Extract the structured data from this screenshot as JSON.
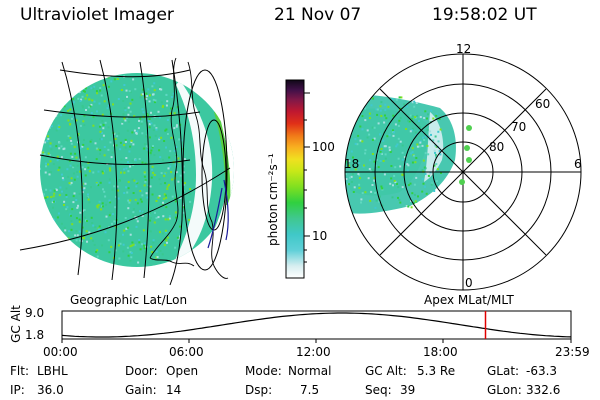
{
  "header": {
    "instrument": "Ultraviolet Imager",
    "date": "21 Nov 07",
    "time": "19:58:02 UT"
  },
  "colorbar": {
    "unit_label": "photon cm⁻²s⁻¹",
    "ticks": [
      "100",
      "10"
    ],
    "colors": [
      "#ffffff",
      "#d8eef0",
      "#80d8d8",
      "#40c8d0",
      "#40c890",
      "#30d040",
      "#70e020",
      "#b0e810",
      "#e0e820",
      "#f8d020",
      "#f89018",
      "#e83018",
      "#c81830",
      "#901848",
      "#501858",
      "#200830"
    ]
  },
  "left_panel": {
    "caption": "Geographic Lat/Lon"
  },
  "right_panel": {
    "caption": "Apex MLat/MLT",
    "mlt_labels": [
      "12",
      "18",
      "6",
      "0"
    ],
    "lat_labels": [
      "60",
      "70",
      "80"
    ]
  },
  "timeline": {
    "axis_label": "GC Alt",
    "y_ticks": [
      "9.0",
      "1.8"
    ],
    "x_ticks": [
      "00:00",
      "06:00",
      "12:00",
      "18:00",
      "23:59"
    ],
    "current_marker_hour": 19.97
  },
  "status": {
    "flt_label": "Flt:",
    "flt_value": "LBHL",
    "ip_label": "IP:",
    "ip_value": "36.0",
    "door_label": "Door:",
    "door_value": "Open",
    "gain_label": "Gain:",
    "gain_value": "14",
    "mode_label": "Mode:",
    "mode_value": "Normal",
    "dsp_label": "Dsp:",
    "dsp_value": "7.5",
    "gcalt_label": "GC Alt:",
    "gcalt_value": "5.3 Re",
    "seq_label": "Seq:",
    "seq_value": "39",
    "glat_label": "GLat:",
    "glat_value": "-63.3",
    "glon_label": "GLon:",
    "glon_value": "332.6"
  }
}
